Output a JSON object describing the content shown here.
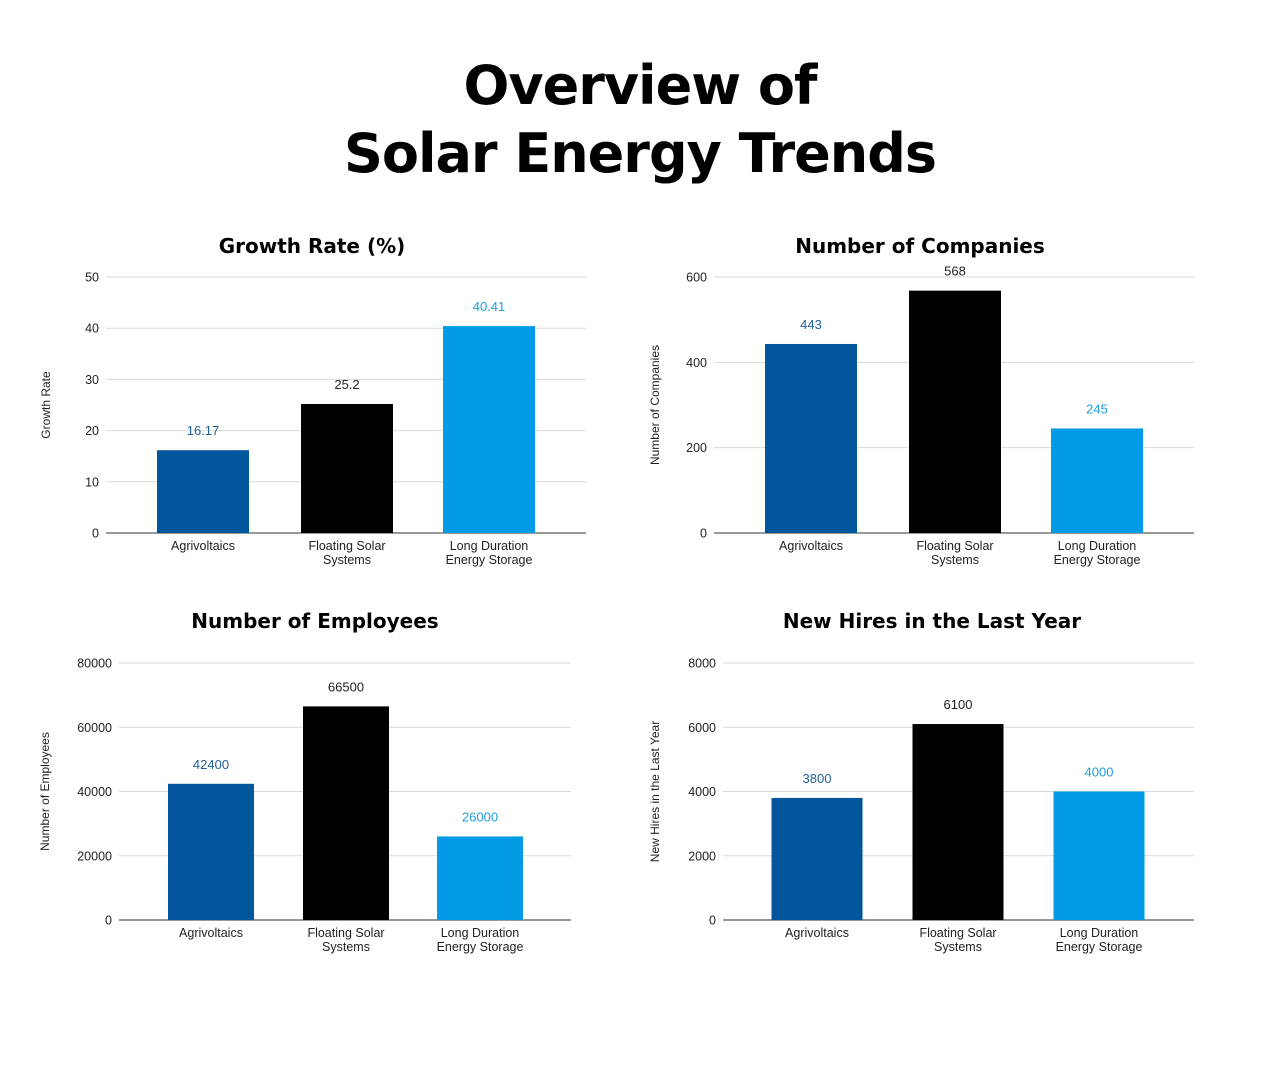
{
  "title": {
    "line1": "Overview of",
    "line2": "Solar Energy Trends"
  },
  "colors": {
    "series": [
      "#02569b",
      "#000000",
      "#039be5"
    ]
  },
  "chart_data": [
    {
      "type": "bar",
      "title": "Growth Rate (%)",
      "ylabel": "Growth Rate",
      "xlabel": "",
      "categories": [
        [
          "Agrivoltaics"
        ],
        [
          "Floating Solar",
          "Systems"
        ],
        [
          "Long Duration",
          "Energy Storage"
        ]
      ],
      "values": [
        16.17,
        25.2,
        40.41
      ],
      "value_labels": [
        "16.17",
        "25.2",
        "40.41"
      ],
      "yticks": [
        0,
        10,
        20,
        30,
        40,
        50
      ],
      "ylim": [
        0,
        50
      ],
      "grid": true
    },
    {
      "type": "bar",
      "title": "Number of Companies",
      "ylabel": "Number of Companies",
      "xlabel": "",
      "categories": [
        [
          "Agrivoltaics"
        ],
        [
          "Floating Solar",
          "Systems"
        ],
        [
          "Long Duration",
          "Energy Storage"
        ]
      ],
      "values": [
        443,
        568,
        245
      ],
      "value_labels": [
        "443",
        "568",
        "245"
      ],
      "yticks": [
        0,
        200,
        400,
        600
      ],
      "ylim": [
        0,
        600
      ],
      "grid": true
    },
    {
      "type": "bar",
      "title": "Number of Employees",
      "ylabel": "Number of Employees",
      "xlabel": "",
      "categories": [
        [
          "Agrivoltaics"
        ],
        [
          "Floating Solar",
          "Systems"
        ],
        [
          "Long Duration",
          "Energy Storage"
        ]
      ],
      "values": [
        42400,
        66500,
        26000
      ],
      "value_labels": [
        "42400",
        "66500",
        "26000"
      ],
      "yticks": [
        0,
        20000,
        40000,
        60000,
        80000
      ],
      "ylim": [
        0,
        80000
      ],
      "grid": true
    },
    {
      "type": "bar",
      "title": "New Hires in the Last Year",
      "ylabel": "New Hires in the Last Year",
      "xlabel": "",
      "categories": [
        [
          "Agrivoltaics"
        ],
        [
          "Floating Solar",
          "Systems"
        ],
        [
          "Long Duration",
          "Energy Storage"
        ]
      ],
      "values": [
        3800,
        6100,
        4000
      ],
      "value_labels": [
        "3800",
        "6100",
        "4000"
      ],
      "yticks": [
        0,
        2000,
        4000,
        6000,
        8000
      ],
      "ylim": [
        0,
        8000
      ],
      "grid": true
    }
  ]
}
